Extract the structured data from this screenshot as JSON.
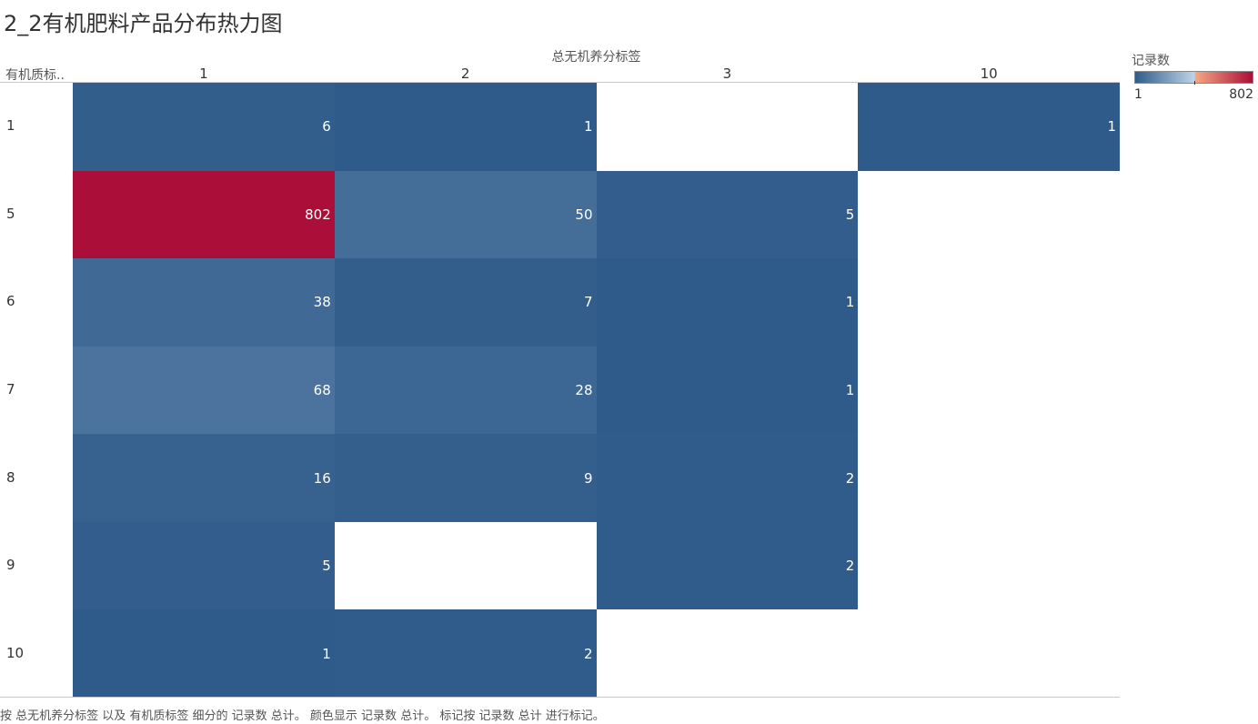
{
  "title": "2_2有机肥料产品分布热力图",
  "caption": "按 总无机养分标签 以及 有机质标签 细分的 记录数 总计。 颜色显示 记录数 总计。 标记按 记录数 总计 进行标记。",
  "colors": {
    "low": "#2f5b8a",
    "mid": "#bcd3e8",
    "mid_high": "#f4a582",
    "high": "#ab0e38"
  },
  "legend": {
    "title": "记录数",
    "min": "1",
    "max": "802"
  },
  "chart_data": {
    "type": "heatmap",
    "title": "2_2有机肥料产品分布热力图",
    "x_field": "总无机养分标签",
    "y_field": "有机质标..",
    "x_categories": [
      "1",
      "2",
      "3",
      "10"
    ],
    "y_categories": [
      "1",
      "5",
      "6",
      "7",
      "8",
      "9",
      "10"
    ],
    "color_range": [
      1,
      802
    ],
    "cells": [
      {
        "x": "1",
        "y": "1",
        "value": 6
      },
      {
        "x": "2",
        "y": "1",
        "value": 1
      },
      {
        "x": "10",
        "y": "1",
        "value": 1
      },
      {
        "x": "1",
        "y": "5",
        "value": 802
      },
      {
        "x": "2",
        "y": "5",
        "value": 50
      },
      {
        "x": "3",
        "y": "5",
        "value": 5
      },
      {
        "x": "1",
        "y": "6",
        "value": 38
      },
      {
        "x": "2",
        "y": "6",
        "value": 7
      },
      {
        "x": "3",
        "y": "6",
        "value": 1
      },
      {
        "x": "1",
        "y": "7",
        "value": 68
      },
      {
        "x": "2",
        "y": "7",
        "value": 28
      },
      {
        "x": "3",
        "y": "7",
        "value": 1
      },
      {
        "x": "1",
        "y": "8",
        "value": 16
      },
      {
        "x": "2",
        "y": "8",
        "value": 9
      },
      {
        "x": "3",
        "y": "8",
        "value": 2
      },
      {
        "x": "1",
        "y": "9",
        "value": 5
      },
      {
        "x": "3",
        "y": "9",
        "value": 2
      },
      {
        "x": "1",
        "y": "10",
        "value": 1
      },
      {
        "x": "2",
        "y": "10",
        "value": 2
      }
    ]
  }
}
